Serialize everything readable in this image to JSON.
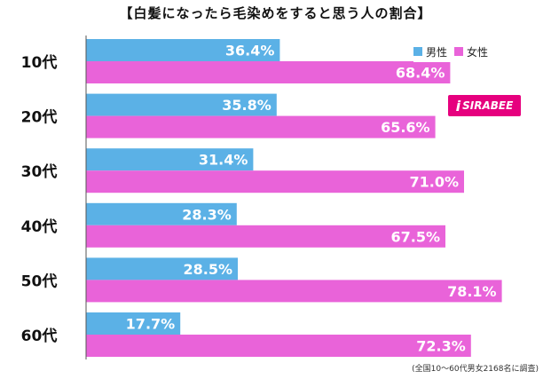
{
  "chart_data": {
    "type": "bar",
    "orientation": "horizontal",
    "title": "【白髪になったら毛染めをすると思う人の割合】",
    "categories": [
      "10代",
      "20代",
      "30代",
      "40代",
      "50代",
      "60代"
    ],
    "series": [
      {
        "name": "男性",
        "values": [
          36.4,
          35.8,
          31.4,
          28.3,
          28.5,
          17.7
        ],
        "color": "#5bb1e6"
      },
      {
        "name": "女性",
        "values": [
          68.4,
          65.6,
          71.0,
          67.5,
          78.1,
          72.3
        ],
        "color": "#e963d9"
      }
    ],
    "value_suffix": "%",
    "xlim": [
      0,
      100
    ],
    "grid": false,
    "legend_position": "top-right",
    "note": "(全国10〜60代男女2168名に調査)"
  },
  "logo": {
    "text": "SIRABEE",
    "mark": "i"
  }
}
